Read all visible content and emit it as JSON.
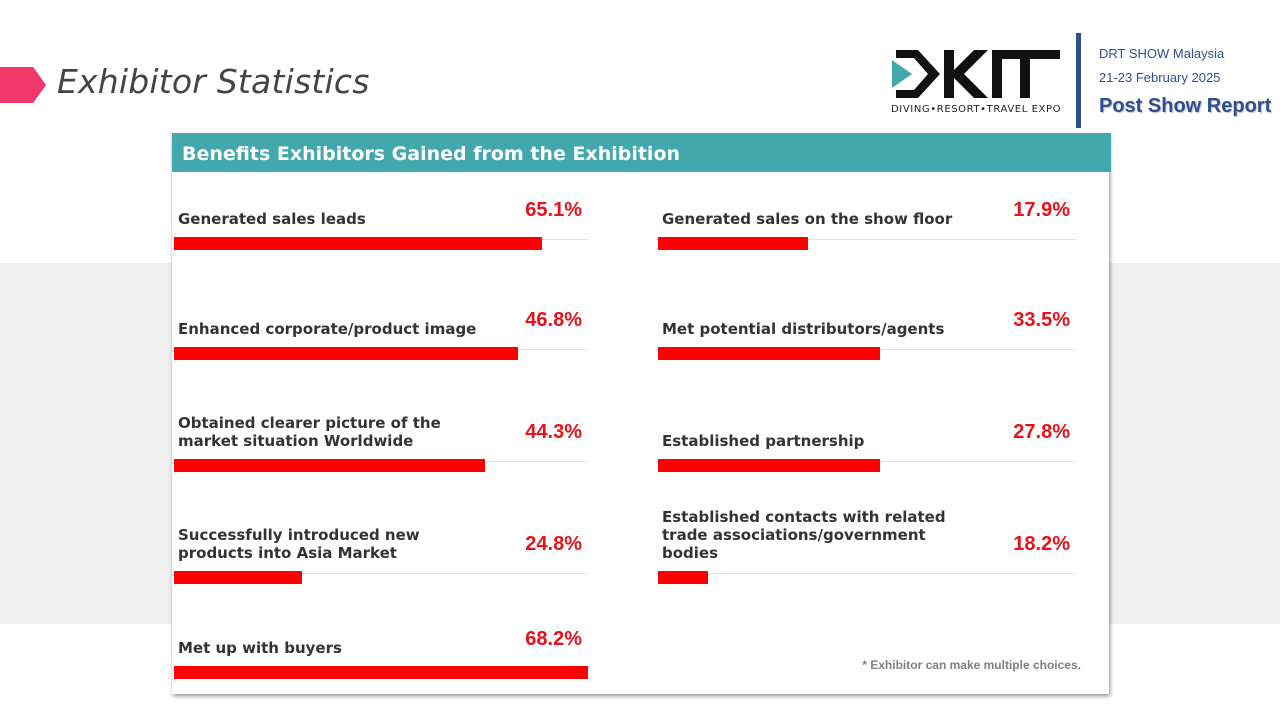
{
  "page": {
    "title": "Exhibitor Statistics"
  },
  "logo": {
    "tagline": "DIVING•RESORT•TRAVEL EXPO"
  },
  "header": {
    "show_name": "DRT SHOW Malaysia",
    "dates": "21-23 February  2025",
    "report": "Post Show Report"
  },
  "colors": {
    "accent": "#f0386b",
    "teal": "#43a8ae",
    "bar": "#ff0000",
    "pct": "#e8101a",
    "navy": "#2e4f8f"
  },
  "panel": {
    "title": "Benefits Exhibitors Gained from the Exhibition",
    "note": "* Exhibitor can make multiple choices.",
    "left": [
      {
        "label": "Generated sales leads",
        "value": "65.1%",
        "fill": 0.89
      },
      {
        "label": "Enhanced corporate/product image",
        "value": "46.8%",
        "fill": 0.83
      },
      {
        "label": "Obtained clearer picture of the market situation Worldwide",
        "value": "44.3%",
        "fill": 0.75
      },
      {
        "label": "Successfully introduced new products into Asia Market",
        "value": "24.8%",
        "fill": 0.31
      },
      {
        "label": "Met up with buyers",
        "value": "68.2%",
        "fill": 1.0
      }
    ],
    "right": [
      {
        "label": "Generated sales on the show floor",
        "value": "17.9%",
        "fill": 0.36
      },
      {
        "label": "Met potential distributors/agents",
        "value": "33.5%",
        "fill": 0.53
      },
      {
        "label": "Established partnership",
        "value": "27.8%",
        "fill": 0.53
      },
      {
        "label": "Established contacts with related trade associations/government bodies",
        "value": "18.2%",
        "fill": 0.12
      }
    ]
  }
}
